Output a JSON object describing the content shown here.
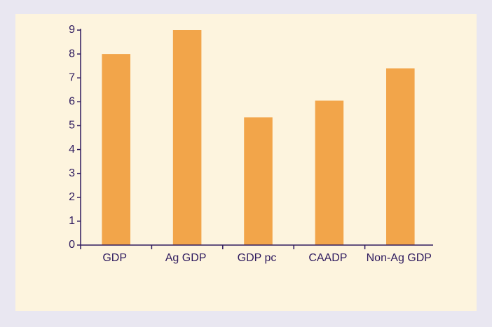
{
  "chart_data": {
    "type": "bar",
    "categories": [
      "GDP",
      "Ag GDP",
      "GDP pc",
      "CAADP",
      "Non-Ag GDP"
    ],
    "values": [
      8.0,
      9.0,
      5.35,
      6.05,
      7.4
    ],
    "color": "#f2a54a",
    "ylim": [
      0,
      9
    ],
    "yticks": [
      0,
      1,
      2,
      3,
      4,
      5,
      6,
      7,
      8,
      9
    ],
    "grid": false
  }
}
